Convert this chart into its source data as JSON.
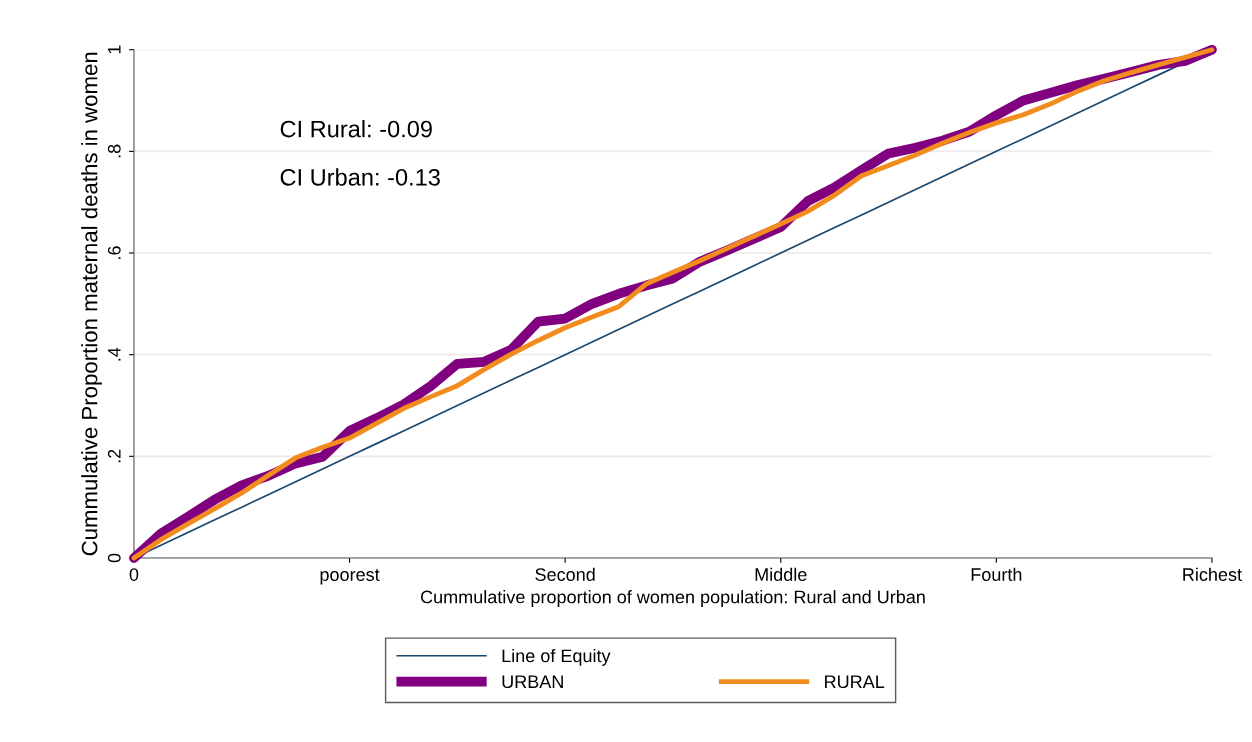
{
  "chart_data": {
    "type": "line",
    "xlabel": "Cummulative proportion of women population: Rural and Urban",
    "ylabel": "Cummulative Proportion maternal deaths in women",
    "categories": [
      "0",
      null,
      null,
      null,
      null,
      null,
      null,
      null,
      "poorest",
      null,
      null,
      null,
      null,
      null,
      null,
      null,
      "Second",
      null,
      null,
      null,
      null,
      null,
      null,
      null,
      "Middle",
      null,
      null,
      null,
      null,
      null,
      null,
      null,
      "Fourth",
      null,
      null,
      null,
      null,
      null,
      null,
      null,
      "Richest"
    ],
    "ylim": [
      0,
      1
    ],
    "yticks": [
      0,
      {
        "value": 0.2,
        "label": ".2"
      },
      {
        "value": 0.4,
        "label": ".4"
      },
      {
        "value": 0.6,
        "label": ".6"
      },
      {
        "value": 0.8,
        "label": ".8"
      },
      1
    ],
    "grid": "y",
    "legend": "bottom",
    "marker": "none",
    "annotations": [
      "CI Rural: -0.09",
      "CI Urban: -0.13"
    ],
    "series": [
      {
        "name": "Line of Equity",
        "color": "#1a476f",
        "values": [
          0,
          0.025,
          0.05,
          0.075,
          0.1,
          0.125,
          0.15,
          0.175,
          0.2,
          0.225,
          0.25,
          0.275,
          0.3,
          0.325,
          0.35,
          0.375,
          0.4,
          0.425,
          0.45,
          0.475,
          0.5,
          0.525,
          0.55,
          0.575,
          0.6,
          0.625,
          0.65,
          0.675,
          0.7,
          0.725,
          0.75,
          0.775,
          0.8,
          0.825,
          0.85,
          0.875,
          0.9,
          0.925,
          0.95,
          0.975,
          1
        ]
      },
      {
        "name": "URBAN",
        "color": "#800080",
        "values": [
          0,
          0.048,
          0.081,
          0.115,
          0.143,
          0.162,
          0.186,
          0.199,
          0.25,
          0.275,
          0.302,
          0.338,
          0.382,
          0.386,
          0.41,
          0.465,
          0.471,
          0.5,
          0.52,
          0.536,
          0.55,
          0.583,
          0.605,
          0.628,
          0.651,
          0.702,
          0.729,
          0.763,
          0.796,
          0.807,
          0.821,
          0.839,
          0.871,
          0.9,
          0.915,
          0.93,
          0.943,
          0.956,
          0.97,
          0.978,
          1
        ]
      },
      {
        "name": "RURAL",
        "color": "#f28c1e",
        "values": [
          0,
          0.036,
          0.067,
          0.097,
          0.128,
          0.163,
          0.197,
          0.218,
          0.236,
          0.265,
          0.294,
          0.317,
          0.339,
          0.371,
          0.401,
          0.428,
          0.453,
          0.474,
          0.495,
          0.539,
          0.562,
          0.585,
          0.609,
          0.633,
          0.657,
          0.682,
          0.714,
          0.752,
          0.772,
          0.793,
          0.816,
          0.837,
          0.856,
          0.872,
          0.893,
          0.918,
          0.939,
          0.955,
          0.97,
          0.985,
          1
        ]
      }
    ]
  }
}
